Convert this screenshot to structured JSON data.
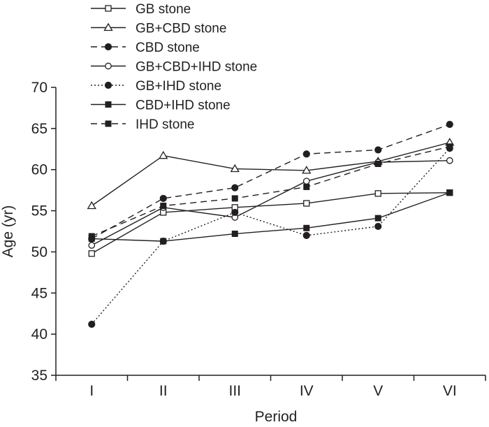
{
  "chart_data": {
    "type": "line",
    "xlabel": "Period",
    "ylabel": "Age (yr)",
    "categories": [
      "I",
      "II",
      "III",
      "IV",
      "V",
      "VI"
    ],
    "ylim": [
      35,
      70
    ],
    "yticks": [
      35,
      40,
      45,
      50,
      55,
      60,
      65,
      70
    ],
    "grid": false,
    "legend_position": "top-left",
    "series": [
      {
        "name": "GB stone",
        "values": [
          49.8,
          54.8,
          55.4,
          55.9,
          57.1,
          57.2
        ],
        "marker": "square-open",
        "dash": "solid"
      },
      {
        "name": "GB+CBD stone",
        "values": [
          55.6,
          61.7,
          60.1,
          59.9,
          61.0,
          63.3
        ],
        "marker": "triangle-open",
        "dash": "solid"
      },
      {
        "name": "CBD stone",
        "values": [
          51.6,
          56.5,
          57.8,
          61.9,
          62.4,
          65.5
        ],
        "marker": "circle-filled",
        "dash": "dashed"
      },
      {
        "name": "GB+CBD+IHD stone",
        "values": [
          50.8,
          55.4,
          54.2,
          58.6,
          60.9,
          61.1
        ],
        "marker": "circle-open",
        "dash": "solid"
      },
      {
        "name": "GB+IHD stone",
        "values": [
          41.2,
          51.3,
          54.8,
          52.0,
          53.1,
          62.6
        ],
        "marker": "circle-filled",
        "dash": "dotted"
      },
      {
        "name": "CBD+IHD stone",
        "values": [
          51.6,
          51.3,
          52.2,
          52.9,
          54.1,
          57.2
        ],
        "marker": "square-filled",
        "dash": "solid"
      },
      {
        "name": "IHD stone",
        "values": [
          51.9,
          55.6,
          56.5,
          57.9,
          60.7,
          62.8
        ],
        "marker": "square-filled",
        "dash": "dashed"
      }
    ],
    "colors": {
      "ink": "#231f20",
      "background": "#ffffff"
    }
  }
}
